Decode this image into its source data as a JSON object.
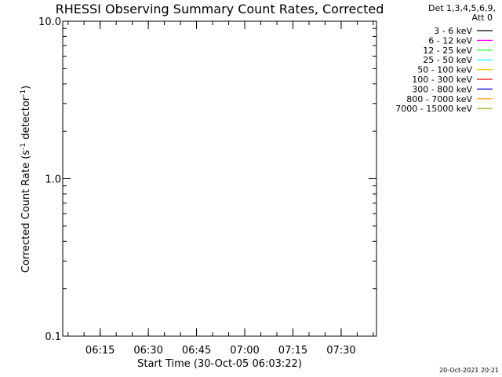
{
  "chart_data": {
    "type": "line",
    "title": "RHESSI Observing Summary Count Rates, Corrected",
    "xlabel": "Start Time (30-Oct-05 06:03:22)",
    "ylabel_main": "Corrected Count Rate (s",
    "ylabel_sup1": "-1",
    "ylabel_mid": " detector",
    "ylabel_sup2": "-1",
    "ylabel_end": ")",
    "yscale": "log",
    "ylim": [
      0.1,
      10.0
    ],
    "y_ticks": [
      {
        "value": 0.1,
        "label": "0.1"
      },
      {
        "value": 1.0,
        "label": "1.0"
      },
      {
        "value": 10.0,
        "label": "10.0"
      }
    ],
    "xlim": [
      "06:03:22",
      "07:41:00"
    ],
    "x_ticks": [
      {
        "value": "06:15",
        "label": "06:15"
      },
      {
        "value": "06:30",
        "label": "06:30"
      },
      {
        "value": "06:45",
        "label": "06:45"
      },
      {
        "value": "07:00",
        "label": "07:00"
      },
      {
        "value": "07:15",
        "label": "07:15"
      },
      {
        "value": "07:30",
        "label": "07:30"
      }
    ],
    "legend_header": [
      "Det 1,3,4,5,6,9,",
      "Att 0"
    ],
    "legend_placement": "top-right, outside plot",
    "series": [
      {
        "name": "3 - 6 keV",
        "color": "#000000",
        "values": []
      },
      {
        "name": "6 - 12 keV",
        "color": "#ff00ff",
        "values": []
      },
      {
        "name": "12 - 25 keV",
        "color": "#00ff00",
        "values": []
      },
      {
        "name": "25 - 50 keV",
        "color": "#00ffff",
        "values": []
      },
      {
        "name": "50 - 100 keV",
        "color": "#ffcc00",
        "values": []
      },
      {
        "name": "100 - 300 keV",
        "color": "#ff0000",
        "values": []
      },
      {
        "name": "300 - 800 keV",
        "color": "#0000ff",
        "values": []
      },
      {
        "name": "800 - 7000 keV",
        "color": "#ff9900",
        "values": []
      },
      {
        "name": "7000 - 15000 keV",
        "color": "#999900",
        "values": []
      }
    ],
    "footer_timestamp": "20-Oct-2021 20:21"
  }
}
